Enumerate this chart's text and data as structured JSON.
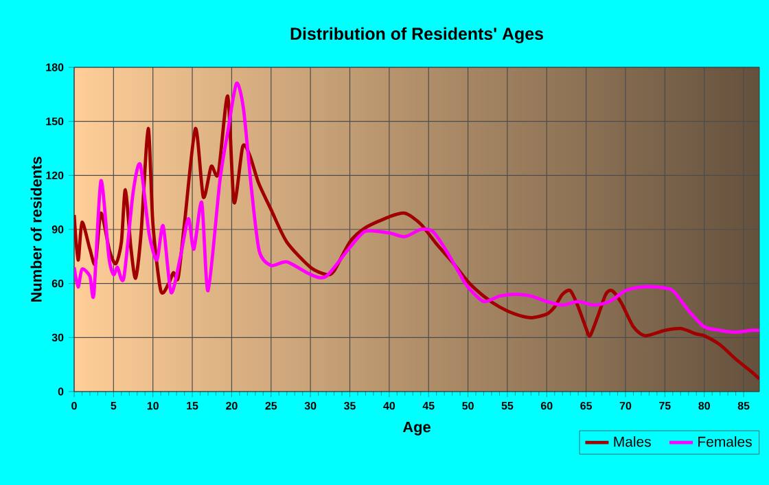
{
  "chart_data": {
    "type": "line",
    "title": "Distribution of Residents' Ages",
    "xlabel": "Age",
    "ylabel": "Number of residents",
    "xlim": [
      0,
      87
    ],
    "ylim": [
      0,
      180
    ],
    "xticks": [
      0,
      5,
      10,
      15,
      20,
      25,
      30,
      35,
      40,
      45,
      50,
      55,
      60,
      65,
      70,
      75,
      80,
      85
    ],
    "yticks": [
      0,
      30,
      60,
      90,
      120,
      150,
      180
    ],
    "grid": true,
    "legend": "bottom right",
    "marker": "none",
    "line_style": "solid",
    "series": [
      {
        "name": "Males",
        "color": "#a00000",
        "x": [
          0,
          0.5,
          1,
          2,
          2.7,
          3.4,
          4.5,
          5.3,
          6,
          6.5,
          7.2,
          7.8,
          8.5,
          9.4,
          10,
          11,
          12,
          12.6,
          13.2,
          14,
          15.4,
          16.4,
          17.4,
          18.3,
          19.5,
          20.3,
          21.4,
          22.3,
          23.4,
          25,
          27,
          30,
          32,
          33,
          35,
          37,
          40,
          42,
          44,
          46,
          48,
          50,
          52,
          54,
          56,
          58,
          60,
          61,
          62,
          63,
          64,
          65,
          65.5,
          66.5,
          67.5,
          68.3,
          69.5,
          71,
          72.5,
          75,
          77,
          79,
          80,
          82,
          84,
          86,
          87
        ],
        "values": [
          98,
          73,
          94,
          79,
          71,
          99,
          78,
          71,
          83,
          112,
          80,
          63,
          88,
          146,
          93,
          56,
          60,
          66,
          63,
          93,
          146,
          108,
          125,
          121,
          164,
          105,
          136,
          131,
          116,
          101,
          83,
          69,
          65,
          67,
          83,
          91,
          97,
          99,
          93,
          82,
          72,
          61,
          53,
          47,
          43,
          41,
          43,
          47,
          54,
          56,
          47,
          35,
          31,
          42,
          54,
          56,
          49,
          36,
          31,
          34,
          35,
          32,
          31,
          26,
          18,
          11,
          7
        ]
      },
      {
        "name": "Females",
        "color": "#ff00ff",
        "x": [
          0,
          0.5,
          1,
          2,
          2.5,
          3.4,
          4.4,
          5,
          5.5,
          6.3,
          7.5,
          8.4,
          9.5,
          10.5,
          11.3,
          12.3,
          13.5,
          14.5,
          15.2,
          16.2,
          17,
          18.5,
          19.5,
          20.6,
          21.5,
          22.5,
          23.5,
          25,
          27,
          30,
          32,
          35,
          37,
          40,
          42,
          44,
          45.5,
          47,
          49,
          50,
          52,
          54,
          56,
          58,
          60,
          62,
          64,
          66,
          68,
          70,
          72,
          74,
          76,
          78,
          80,
          82,
          84,
          86,
          87
        ],
        "values": [
          69,
          58,
          68,
          64,
          54,
          117,
          75,
          65,
          69,
          63,
          111,
          126,
          88,
          73,
          92,
          55,
          75,
          96,
          79,
          105,
          56,
          117,
          144,
          171,
          157,
          113,
          78,
          70,
          72,
          65,
          64,
          80,
          89,
          88,
          86,
          90,
          89,
          80,
          65,
          58,
          50,
          53,
          54,
          53,
          50,
          48,
          50,
          48,
          50,
          56,
          58,
          58,
          56,
          45,
          36,
          34,
          33,
          34,
          34
        ]
      }
    ]
  }
}
